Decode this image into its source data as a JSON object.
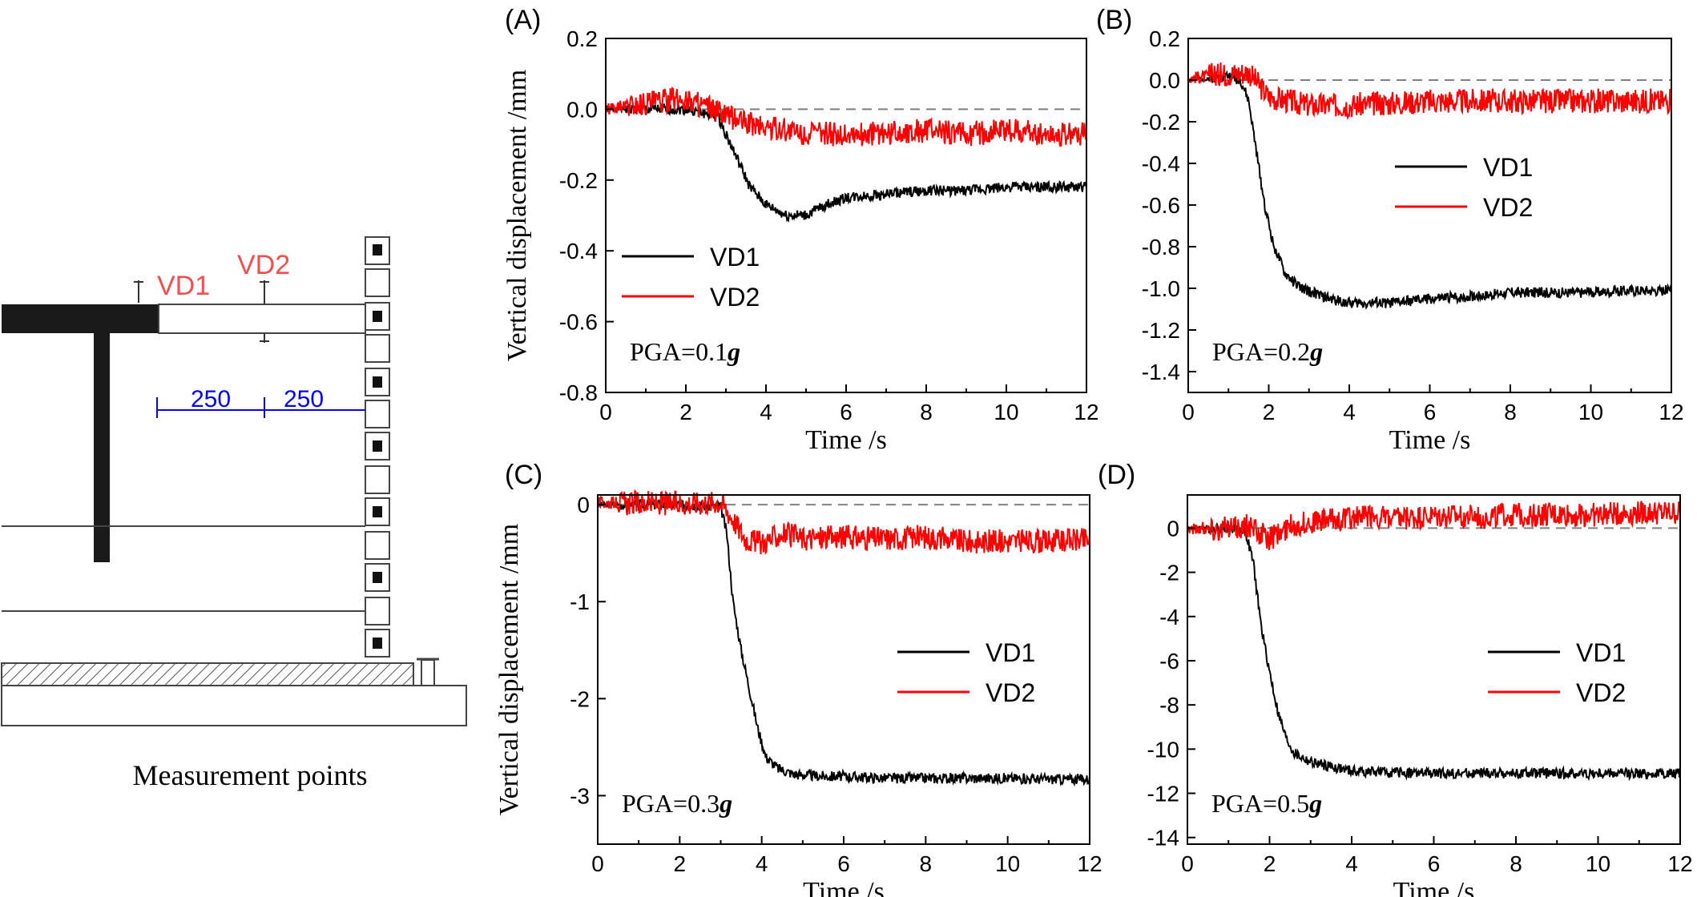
{
  "schematic": {
    "caption": "Measurement points",
    "point_labels": [
      "VD1",
      "VD2"
    ],
    "dimensions": [
      "250",
      "250"
    ]
  },
  "colors": {
    "VD1": "#000000",
    "VD2": "#ff0000",
    "reference_line": "#808080",
    "dimension": "#0000ff",
    "schematic_label": "#f05050"
  },
  "chart_data": [
    {
      "type": "line",
      "panel_label": "(A)",
      "annotation_prefix": "PGA=0.1",
      "annotation_unit": "g",
      "xlabel": "Time /s",
      "ylabel": "Vertical displacement /mm",
      "xlim": [
        0,
        12
      ],
      "ylim": [
        -0.8,
        0.2
      ],
      "xticks": [
        0,
        2,
        4,
        6,
        8,
        10,
        12
      ],
      "yticks": [
        -0.8,
        -0.6,
        -0.4,
        -0.2,
        0.0,
        0.2
      ],
      "ytick_labels": [
        "-0.8",
        "-0.6",
        "-0.4",
        "-0.2",
        "0.0",
        "0.2"
      ],
      "reference_line": 0,
      "legend_position": "lower-left",
      "series": [
        {
          "name": "VD1",
          "color": "#000000",
          "x": [
            0,
            1,
            2,
            2.8,
            3.2,
            3.6,
            4,
            4.5,
            5,
            5.5,
            6,
            7,
            8,
            9,
            10,
            11,
            12
          ],
          "y": [
            0.0,
            0.0,
            0.0,
            -0.02,
            -0.12,
            -0.22,
            -0.27,
            -0.3,
            -0.3,
            -0.27,
            -0.25,
            -0.24,
            -0.23,
            -0.23,
            -0.22,
            -0.22,
            -0.22
          ]
        },
        {
          "name": "VD2",
          "color": "#ff0000",
          "x": [
            0,
            1,
            2,
            3,
            4,
            5,
            6,
            7,
            8,
            9,
            10,
            11,
            12
          ],
          "y": [
            0.0,
            0.02,
            0.03,
            -0.02,
            -0.05,
            -0.07,
            -0.07,
            -0.07,
            -0.06,
            -0.07,
            -0.06,
            -0.07,
            -0.07
          ]
        }
      ]
    },
    {
      "type": "line",
      "panel_label": "(B)",
      "annotation_prefix": "PGA=0.2",
      "annotation_unit": "g",
      "xlabel": "Time /s",
      "ylabel": "",
      "xlim": [
        0,
        12
      ],
      "ylim": [
        -1.5,
        0.2
      ],
      "xticks": [
        0,
        2,
        4,
        6,
        8,
        10,
        12
      ],
      "yticks": [
        -1.4,
        -1.2,
        -1.0,
        -0.8,
        -0.6,
        -0.4,
        -0.2,
        0.0,
        0.2
      ],
      "ytick_labels": [
        "-1.4",
        "-1.2",
        "-1.0",
        "-0.8",
        "-0.6",
        "-0.4",
        "-0.2",
        "0.0",
        "0.2"
      ],
      "reference_line": 0,
      "legend_position": "upper-right",
      "series": [
        {
          "name": "VD1",
          "color": "#000000",
          "x": [
            0,
            1,
            1.3,
            1.5,
            1.7,
            1.9,
            2.1,
            2.4,
            2.8,
            3.5,
            4,
            5,
            6,
            7,
            8,
            9,
            10,
            11,
            12
          ],
          "y": [
            0.0,
            0.02,
            0.0,
            -0.1,
            -0.35,
            -0.6,
            -0.78,
            -0.93,
            -1.0,
            -1.05,
            -1.07,
            -1.07,
            -1.05,
            -1.04,
            -1.02,
            -1.02,
            -1.02,
            -1.01,
            -1.01
          ]
        },
        {
          "name": "VD2",
          "color": "#ff0000",
          "x": [
            0,
            1,
            1.5,
            2,
            3,
            4,
            5,
            6,
            7,
            8,
            9,
            10,
            11,
            12
          ],
          "y": [
            0.01,
            0.03,
            0.04,
            -0.08,
            -0.12,
            -0.12,
            -0.11,
            -0.1,
            -0.1,
            -0.1,
            -0.1,
            -0.1,
            -0.1,
            -0.1
          ]
        }
      ]
    },
    {
      "type": "line",
      "panel_label": "(C)",
      "annotation_prefix": "PGA=0.3",
      "annotation_unit": "g",
      "xlabel": "Time /s",
      "ylabel": "Vertical displacement /mm",
      "xlim": [
        0,
        12
      ],
      "ylim": [
        -3.5,
        0.1
      ],
      "xticks": [
        0,
        2,
        4,
        6,
        8,
        10,
        12
      ],
      "yticks": [
        -3,
        -2,
        -1,
        0
      ],
      "ytick_labels": [
        "-3",
        "-2",
        "-1",
        "0"
      ],
      "reference_line": 0,
      "legend_position": "lower-right",
      "series": [
        {
          "name": "VD1",
          "color": "#000000",
          "x": [
            0,
            2,
            3,
            3.15,
            3.3,
            3.5,
            3.7,
            3.9,
            4.1,
            4.4,
            4.8,
            5.5,
            6,
            7,
            8,
            9,
            10,
            11,
            12
          ],
          "y": [
            0.0,
            0.0,
            -0.02,
            -0.3,
            -1.0,
            -1.5,
            -1.9,
            -2.3,
            -2.6,
            -2.72,
            -2.78,
            -2.8,
            -2.8,
            -2.82,
            -2.82,
            -2.82,
            -2.82,
            -2.83,
            -2.83
          ]
        },
        {
          "name": "VD2",
          "color": "#ff0000",
          "x": [
            0,
            2,
            3,
            3.3,
            3.6,
            4,
            4.5,
            5,
            6,
            7,
            8,
            9,
            10,
            11,
            12
          ],
          "y": [
            0.02,
            0.01,
            0.03,
            -0.15,
            -0.35,
            -0.4,
            -0.3,
            -0.35,
            -0.33,
            -0.35,
            -0.33,
            -0.38,
            -0.38,
            -0.38,
            -0.36
          ]
        }
      ]
    },
    {
      "type": "line",
      "panel_label": "(D)",
      "annotation_prefix": "PGA=0.5",
      "annotation_unit": "g",
      "xlabel": "Time /s",
      "ylabel": "",
      "xlim": [
        0,
        12
      ],
      "ylim": [
        -14.3,
        1.5
      ],
      "xticks": [
        0,
        2,
        4,
        6,
        8,
        10,
        12
      ],
      "yticks": [
        -14,
        -12,
        -10,
        -8,
        -6,
        -4,
        -2,
        0
      ],
      "ytick_labels": [
        "-14",
        "-12",
        "-10",
        "-8",
        "-6",
        "-4",
        "-2",
        "0"
      ],
      "reference_line": 0,
      "legend_position": "lower-right",
      "series": [
        {
          "name": "VD1",
          "color": "#000000",
          "x": [
            0,
            1,
            1.4,
            1.6,
            1.8,
            2,
            2.2,
            2.4,
            2.6,
            3,
            3.5,
            4,
            5,
            6,
            7,
            8,
            9,
            10,
            11,
            12
          ],
          "y": [
            0.0,
            0.0,
            -0.1,
            -1.5,
            -4.5,
            -6.5,
            -8.3,
            -9.5,
            -10.2,
            -10.6,
            -10.8,
            -11.0,
            -11.05,
            -11.1,
            -11.1,
            -11.1,
            -11.1,
            -11.1,
            -11.1,
            -11.1
          ]
        },
        {
          "name": "VD2",
          "color": "#ff0000",
          "x": [
            0,
            1,
            1.5,
            2,
            2.5,
            3,
            3.5,
            4,
            4.5,
            5,
            6,
            7,
            8,
            9,
            10,
            11,
            12
          ],
          "y": [
            0.0,
            0.0,
            0.1,
            -0.5,
            0.1,
            0.3,
            0.4,
            0.5,
            0.6,
            0.4,
            0.5,
            0.5,
            0.6,
            0.6,
            0.6,
            0.7,
            0.7
          ]
        }
      ]
    }
  ]
}
